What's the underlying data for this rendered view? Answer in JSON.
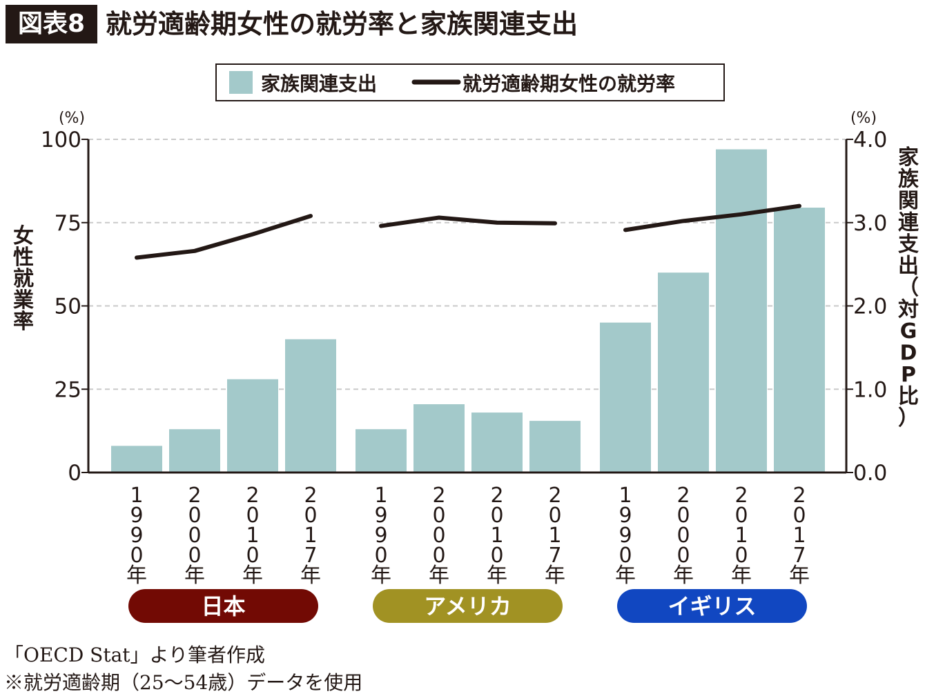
{
  "header": {
    "label": "図表8",
    "title": "就労適齢期女性の就労率と家族関連支出"
  },
  "legend": {
    "bar_label": "家族関連支出",
    "line_label": "就労適齢期女性の就労率"
  },
  "axes": {
    "left_unit": "(%)",
    "right_unit": "(%)",
    "left_label": "女性就業率",
    "right_label": "家族関連支出（対GDP比）",
    "left_ticks": [
      "0",
      "25",
      "50",
      "75",
      "100"
    ],
    "right_ticks": [
      "0.0",
      "1.0",
      "2.0",
      "3.0",
      "4.0"
    ]
  },
  "colors": {
    "bar": "#a3c9ca",
    "line": "#231815",
    "japan": "#720a04",
    "usa": "#a19223",
    "uk": "#1147c1"
  },
  "chart_data": {
    "type": "bar",
    "title": "就労適齢期女性の就労率と家族関連支出",
    "ylabel_left": "女性就業率",
    "ylabel_right": "家族関連支出（対GDP比）",
    "ylim_left": [
      0,
      100
    ],
    "ylim_right": [
      0,
      4.0
    ],
    "grid": "dashed horizontal",
    "legend_position": "top-center",
    "groups": [
      {
        "name": "日本",
        "color": "#720a04",
        "categories": [
          "1990年",
          "2000年",
          "2010年",
          "2017年"
        ],
        "family_spending": [
          0.32,
          0.52,
          1.12,
          1.6
        ],
        "female_employment_rate": [
          64.5,
          66.5,
          71.5,
          77.0
        ]
      },
      {
        "name": "アメリカ",
        "color": "#a19223",
        "categories": [
          "1990年",
          "2000年",
          "2010年",
          "2017年"
        ],
        "family_spending": [
          0.52,
          0.82,
          0.72,
          0.62
        ],
        "female_employment_rate": [
          74.0,
          76.5,
          75.0,
          74.8
        ]
      },
      {
        "name": "イギリス",
        "color": "#1147c1",
        "categories": [
          "1990年",
          "2000年",
          "2010年",
          "2017年"
        ],
        "family_spending": [
          1.8,
          2.4,
          3.88,
          3.18
        ],
        "female_employment_rate": [
          72.8,
          75.5,
          77.5,
          80.0
        ]
      }
    ]
  },
  "footnotes": {
    "source": "「OECD Stat」より筆者作成",
    "note": "※就労適齢期（25〜54歳）データを使用"
  }
}
